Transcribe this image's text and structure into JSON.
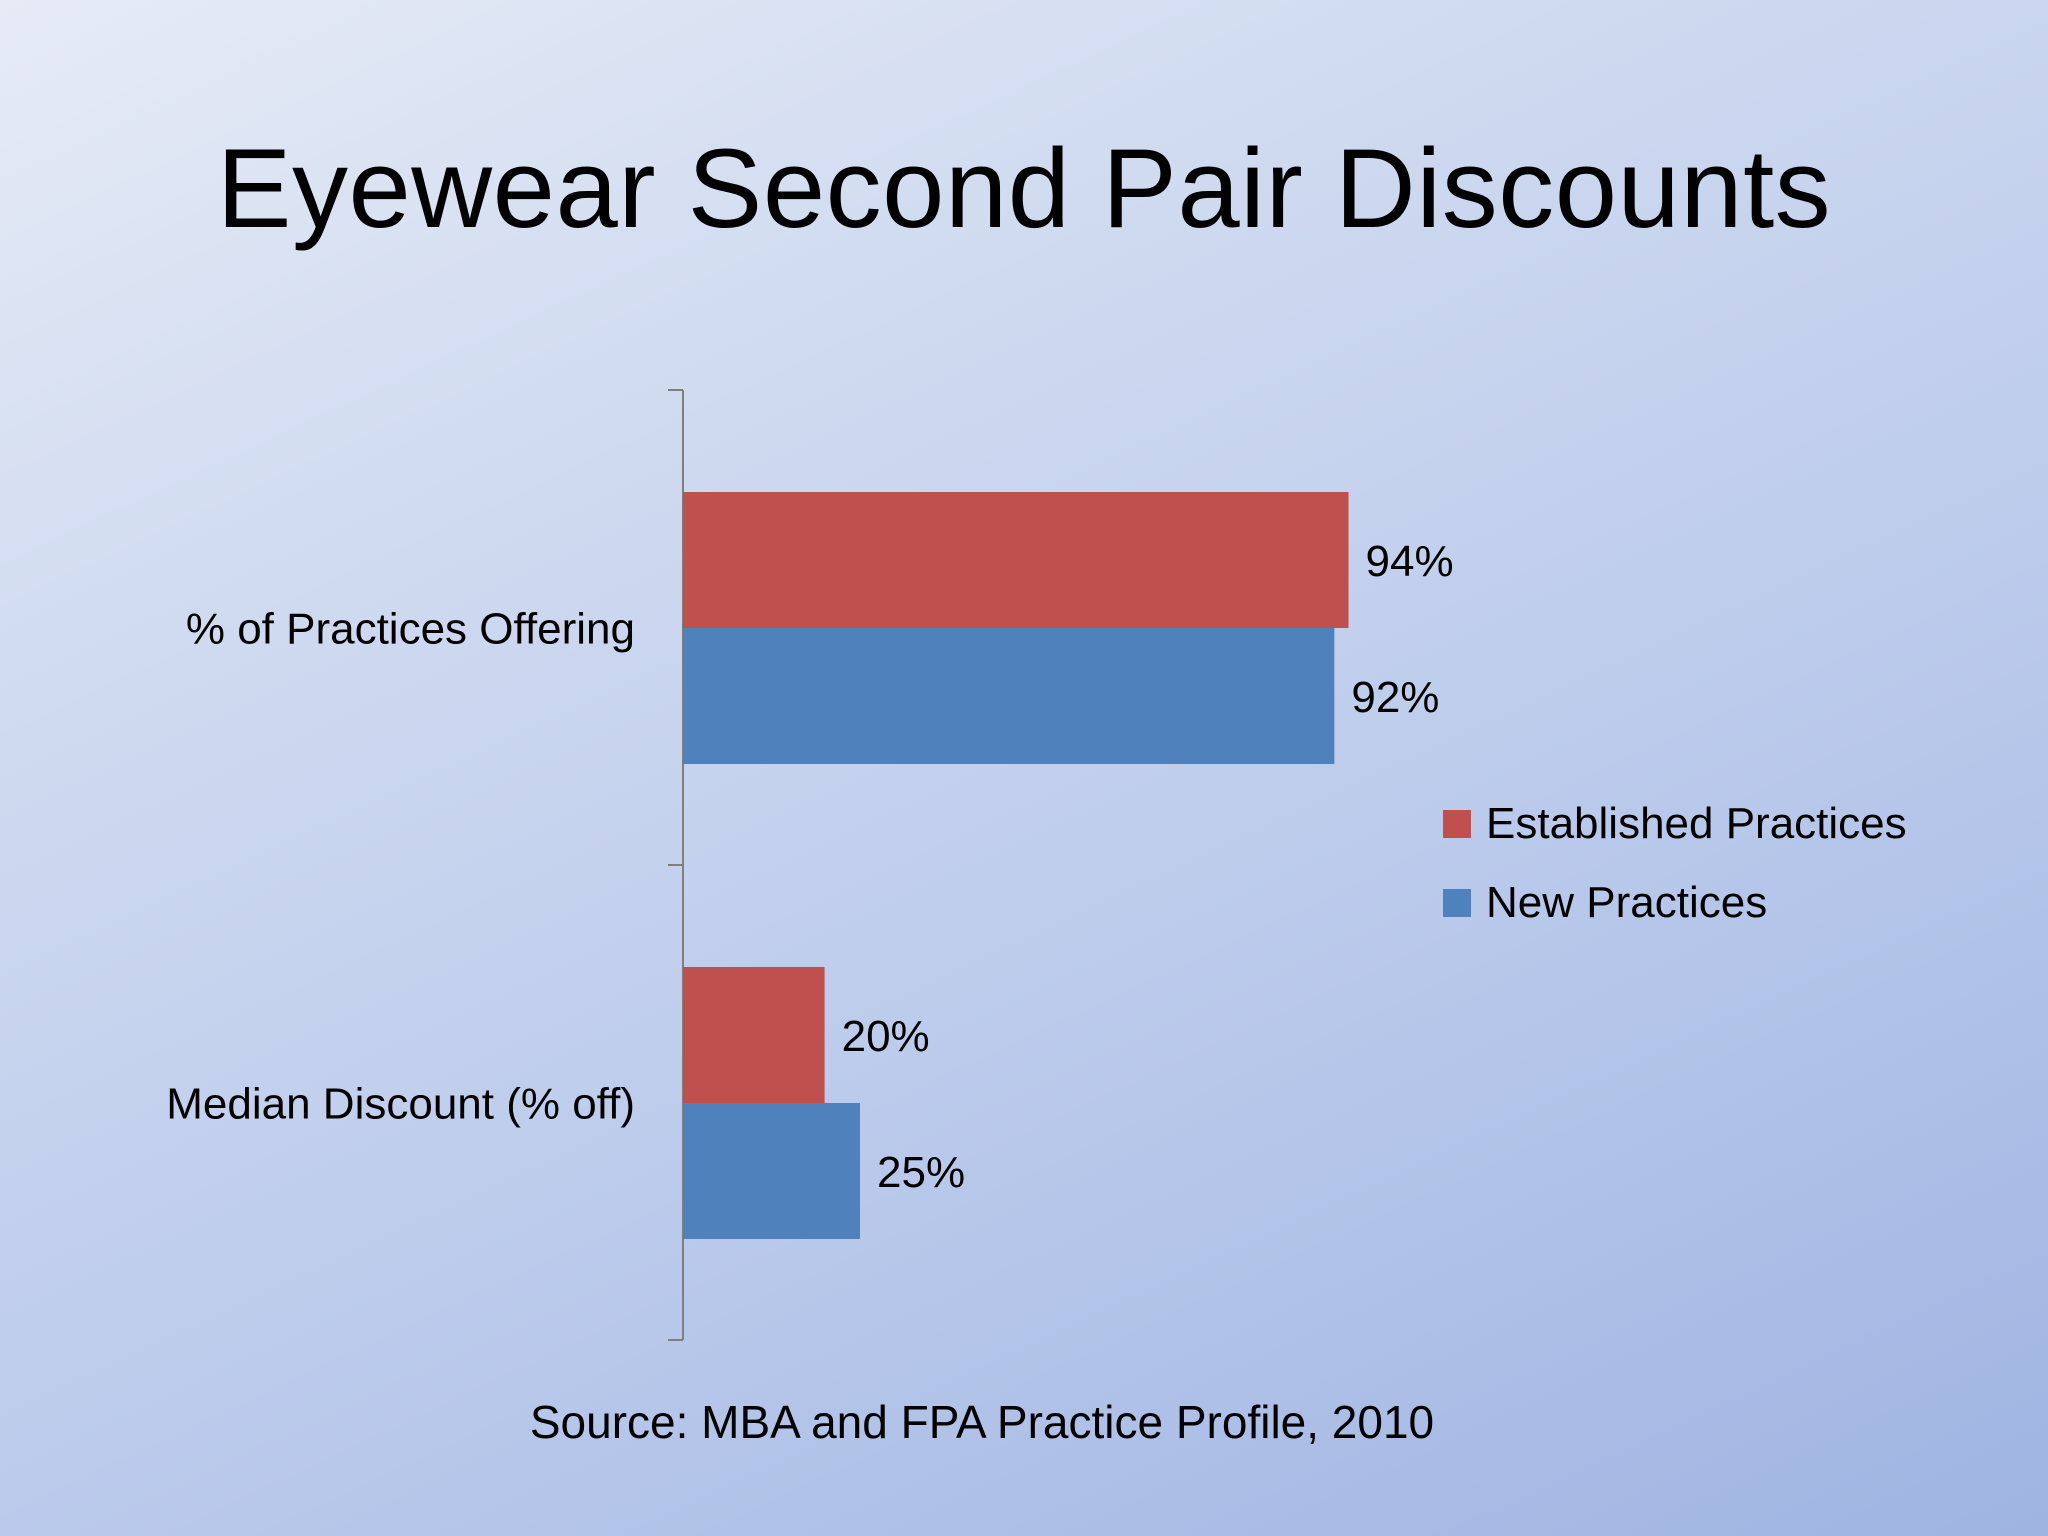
{
  "slide": {
    "title": "Eyewear Second Pair Discounts",
    "source": "Source: MBA and FPA Practice Profile, 2010"
  },
  "chart_data": {
    "type": "bar",
    "orientation": "horizontal",
    "categories": [
      "% of Practices Offering",
      "Median Discount (% off)"
    ],
    "series": [
      {
        "name": "Established Practices",
        "values": [
          94,
          20
        ],
        "labels": [
          "94%",
          "20%"
        ],
        "color": "#c0504d"
      },
      {
        "name": "New Practices",
        "values": [
          92,
          25
        ],
        "labels": [
          "92%",
          "25%"
        ],
        "color": "#4f81bd"
      }
    ],
    "xlim": [
      0,
      100
    ],
    "grid": false,
    "legend_position": "right"
  }
}
